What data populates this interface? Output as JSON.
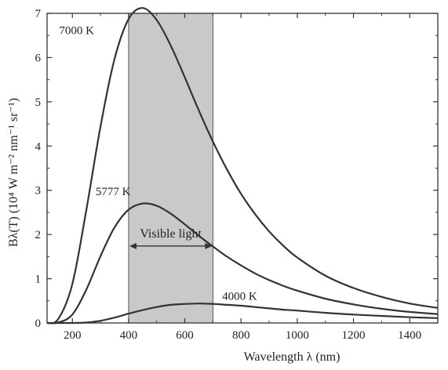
{
  "chart_data": {
    "type": "line",
    "title": "",
    "xlabel": "Wavelength λ (nm)",
    "ylabel": "Bλ(T) (10⁴ W m⁻² nm⁻¹ sr⁻¹)",
    "xlim": [
      110,
      1500
    ],
    "ylim": [
      0,
      7
    ],
    "x_ticks": [
      200,
      400,
      600,
      800,
      1000,
      1200,
      1400
    ],
    "y_ticks": [
      0,
      1,
      2,
      3,
      4,
      5,
      6,
      7
    ],
    "grid": false,
    "band": {
      "label": "Visible light",
      "from": 400,
      "to": 700
    },
    "x": [
      110,
      150,
      200,
      250,
      300,
      350,
      400,
      450,
      500,
      550,
      600,
      650,
      700,
      750,
      800,
      850,
      900,
      950,
      1000,
      1100,
      1200,
      1300,
      1400,
      1500
    ],
    "series": [
      {
        "name": "7000 K",
        "values": [
          0.0,
          0.09,
          0.88,
          2.57,
          4.44,
          5.97,
          6.87,
          7.12,
          6.85,
          6.27,
          5.55,
          4.8,
          4.1,
          3.47,
          2.92,
          2.46,
          2.07,
          1.75,
          1.48,
          1.07,
          0.79,
          0.59,
          0.44,
          0.34
        ]
      },
      {
        "name": "5777 K",
        "values": [
          0.0,
          0.01,
          0.19,
          0.76,
          1.51,
          2.16,
          2.56,
          2.7,
          2.65,
          2.47,
          2.23,
          1.97,
          1.73,
          1.5,
          1.3,
          1.12,
          0.97,
          0.84,
          0.73,
          0.55,
          0.42,
          0.32,
          0.25,
          0.2
        ]
      },
      {
        "name": "4000 K",
        "values": [
          0.0,
          0.0,
          0.0,
          0.01,
          0.05,
          0.12,
          0.21,
          0.29,
          0.36,
          0.41,
          0.43,
          0.44,
          0.43,
          0.41,
          0.39,
          0.36,
          0.33,
          0.3,
          0.28,
          0.23,
          0.19,
          0.16,
          0.13,
          0.11
        ]
      }
    ],
    "colors": {
      "curve": "#333333",
      "band": "#c9c9c9",
      "axis": "#333333"
    }
  }
}
